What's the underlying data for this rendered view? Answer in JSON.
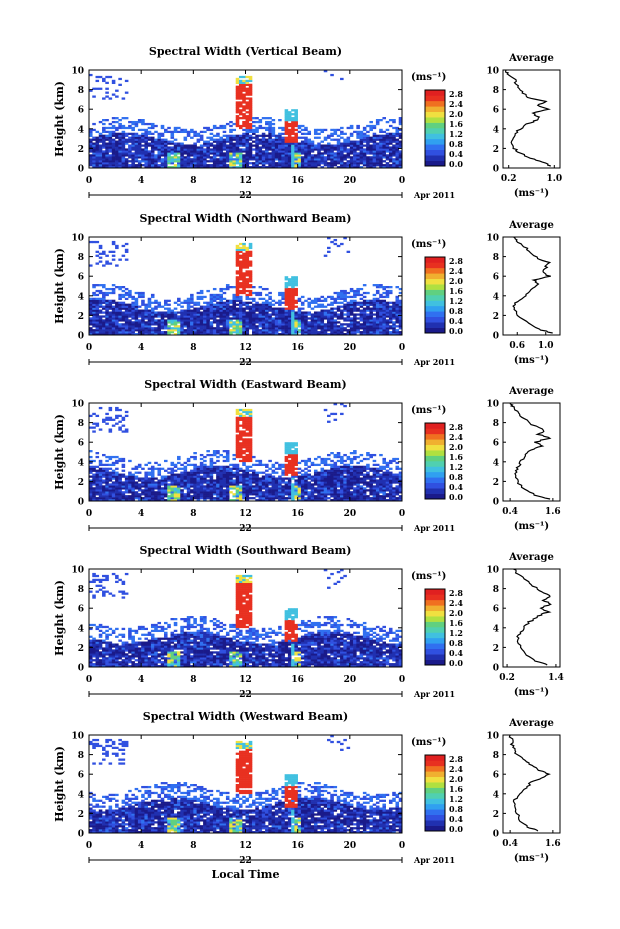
{
  "figure": {
    "date_label": "Apr 2011",
    "day_label": "22",
    "xlabel": "Local Time",
    "unit_label": "(ms⁻¹)",
    "colorbar_ticks": [
      "2.8",
      "2.4",
      "2.0",
      "1.6",
      "1.2",
      "0.8",
      "0.4",
      "0.0"
    ],
    "colors": {
      "white": "#ffffff",
      "low": "#1a1a8a",
      "mid": "#3050e0",
      "cyan": "#40c0e0",
      "green": "#60d080",
      "yellow": "#f0e040",
      "red": "#e83020"
    }
  },
  "chart_data": [
    {
      "type": "heatmap",
      "title": "Spectral Width (Vertical Beam)",
      "ylabel": "Height (km)",
      "x_ticks": [
        "0",
        "4",
        "8",
        "12",
        "16",
        "20",
        "0"
      ],
      "y_ticks": [
        "0",
        "2",
        "4",
        "6",
        "8",
        "10"
      ],
      "xlim": [
        0,
        24
      ],
      "ylim": [
        0,
        10
      ],
      "average": {
        "title": "Average",
        "xlabel": "(ms⁻¹)",
        "x_ticks": [
          "0.2",
          "1.0"
        ],
        "xlim": [
          0.1,
          1.1
        ],
        "profile": [
          [
            0.95,
            0.2
          ],
          [
            0.8,
            0.6
          ],
          [
            0.6,
            1.0
          ],
          [
            0.4,
            1.5
          ],
          [
            0.3,
            2.0
          ],
          [
            0.25,
            2.6
          ],
          [
            0.3,
            3.2
          ],
          [
            0.35,
            3.8
          ],
          [
            0.5,
            4.4
          ],
          [
            0.65,
            4.8
          ],
          [
            0.75,
            5.2
          ],
          [
            0.6,
            5.6
          ],
          [
            0.9,
            6.0
          ],
          [
            0.7,
            6.4
          ],
          [
            0.85,
            6.8
          ],
          [
            0.5,
            7.2
          ],
          [
            0.45,
            7.8
          ],
          [
            0.35,
            8.4
          ],
          [
            0.3,
            9.0
          ],
          [
            0.2,
            9.6
          ],
          [
            0.15,
            10.0
          ]
        ]
      }
    },
    {
      "type": "heatmap",
      "title": "Spectral Width (Northward Beam)",
      "ylabel": "Height (km)",
      "x_ticks": [
        "0",
        "4",
        "8",
        "12",
        "16",
        "20",
        "0"
      ],
      "y_ticks": [
        "0",
        "2",
        "4",
        "6",
        "8",
        "10"
      ],
      "xlim": [
        0,
        24
      ],
      "ylim": [
        0,
        10
      ],
      "average": {
        "title": "Average",
        "xlabel": "(ms⁻¹)",
        "x_ticks": [
          "0.6",
          "1.0"
        ],
        "xlim": [
          0.4,
          1.2
        ],
        "profile": [
          [
            1.1,
            0.2
          ],
          [
            0.9,
            0.6
          ],
          [
            0.75,
            1.2
          ],
          [
            0.6,
            2.0
          ],
          [
            0.55,
            2.8
          ],
          [
            0.6,
            3.4
          ],
          [
            0.7,
            4.0
          ],
          [
            0.8,
            4.6
          ],
          [
            0.9,
            5.2
          ],
          [
            0.85,
            5.6
          ],
          [
            1.05,
            6.0
          ],
          [
            0.95,
            6.4
          ],
          [
            1.0,
            6.9
          ],
          [
            1.05,
            7.4
          ],
          [
            0.9,
            7.8
          ],
          [
            0.8,
            8.4
          ],
          [
            0.7,
            9.0
          ],
          [
            0.6,
            9.6
          ],
          [
            0.55,
            10.0
          ]
        ]
      }
    },
    {
      "type": "heatmap",
      "title": "Spectral Width (Eastward Beam)",
      "ylabel": "Height (km)",
      "x_ticks": [
        "0",
        "4",
        "8",
        "12",
        "16",
        "20",
        "0"
      ],
      "y_ticks": [
        "0",
        "2",
        "4",
        "6",
        "8",
        "10"
      ],
      "xlim": [
        0,
        24
      ],
      "ylim": [
        0,
        10
      ],
      "average": {
        "title": "Average",
        "xlabel": "(ms⁻¹)",
        "x_ticks": [
          "0.4",
          "1.6"
        ],
        "xlim": [
          0.2,
          1.8
        ],
        "profile": [
          [
            1.5,
            0.2
          ],
          [
            1.1,
            0.6
          ],
          [
            0.8,
            1.2
          ],
          [
            0.6,
            2.0
          ],
          [
            0.55,
            2.8
          ],
          [
            0.6,
            3.4
          ],
          [
            0.7,
            4.0
          ],
          [
            0.8,
            4.6
          ],
          [
            1.0,
            5.2
          ],
          [
            1.3,
            5.6
          ],
          [
            1.1,
            6.0
          ],
          [
            1.5,
            6.4
          ],
          [
            1.2,
            6.8
          ],
          [
            1.35,
            7.2
          ],
          [
            1.0,
            7.8
          ],
          [
            0.8,
            8.4
          ],
          [
            0.6,
            9.0
          ],
          [
            0.5,
            9.6
          ],
          [
            0.4,
            10.0
          ]
        ]
      }
    },
    {
      "type": "heatmap",
      "title": "Spectral Width (Southward Beam)",
      "ylabel": "Height (km)",
      "x_ticks": [
        "0",
        "4",
        "8",
        "12",
        "16",
        "20",
        "0"
      ],
      "y_ticks": [
        "0",
        "2",
        "4",
        "6",
        "8",
        "10"
      ],
      "xlim": [
        0,
        24
      ],
      "ylim": [
        0,
        10
      ],
      "average": {
        "title": "Average",
        "xlabel": "(ms⁻¹)",
        "x_ticks": [
          "0.2",
          "1.4"
        ],
        "xlim": [
          0.1,
          1.5
        ],
        "profile": [
          [
            1.2,
            0.2
          ],
          [
            0.9,
            0.6
          ],
          [
            0.7,
            1.2
          ],
          [
            0.55,
            2.0
          ],
          [
            0.45,
            2.8
          ],
          [
            0.5,
            3.4
          ],
          [
            0.6,
            4.0
          ],
          [
            0.75,
            4.6
          ],
          [
            0.95,
            5.2
          ],
          [
            1.2,
            5.6
          ],
          [
            1.0,
            6.0
          ],
          [
            1.3,
            6.4
          ],
          [
            1.1,
            6.8
          ],
          [
            1.25,
            7.3
          ],
          [
            1.0,
            7.8
          ],
          [
            0.8,
            8.4
          ],
          [
            0.6,
            9.0
          ],
          [
            0.45,
            9.6
          ],
          [
            0.35,
            10.0
          ]
        ]
      }
    },
    {
      "type": "heatmap",
      "title": "Spectral Width (Westward Beam)",
      "ylabel": "Height (km)",
      "x_ticks": [
        "0",
        "4",
        "8",
        "12",
        "16",
        "20",
        "0"
      ],
      "y_ticks": [
        "0",
        "2",
        "4",
        "6",
        "8",
        "10"
      ],
      "xlim": [
        0,
        24
      ],
      "ylim": [
        0,
        10
      ],
      "average": {
        "title": "Average",
        "xlabel": "(ms⁻¹)",
        "x_ticks": [
          "0.4",
          "1.6"
        ],
        "xlim": [
          0.2,
          1.8
        ],
        "profile": [
          [
            1.2,
            0.2
          ],
          [
            0.9,
            0.6
          ],
          [
            0.7,
            1.2
          ],
          [
            0.6,
            2.0
          ],
          [
            0.5,
            2.8
          ],
          [
            0.55,
            3.4
          ],
          [
            0.7,
            4.0
          ],
          [
            0.85,
            4.6
          ],
          [
            1.0,
            5.2
          ],
          [
            1.3,
            5.6
          ],
          [
            1.5,
            6.0
          ],
          [
            1.2,
            6.4
          ],
          [
            1.0,
            6.9
          ],
          [
            0.8,
            7.4
          ],
          [
            0.6,
            8.0
          ],
          [
            0.5,
            8.6
          ],
          [
            0.45,
            9.2
          ],
          [
            0.4,
            10.0
          ]
        ]
      }
    }
  ]
}
